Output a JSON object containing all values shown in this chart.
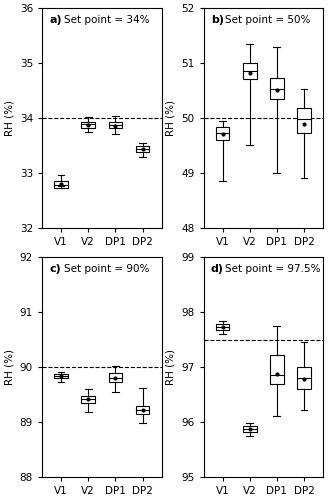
{
  "panels": [
    {
      "label": "a)",
      "title": "Set point = 34%",
      "ylim": [
        32,
        36
      ],
      "yticks": [
        32,
        33,
        34,
        35,
        36
      ],
      "setpoint": 34,
      "ylabel": "RH (%)",
      "boxes": [
        {
          "label": "V1",
          "whislo": 32.75,
          "q1": 32.72,
          "med": 32.78,
          "q3": 32.85,
          "whishi": 32.95,
          "mean": 32.79
        },
        {
          "label": "V2",
          "whislo": 33.75,
          "q1": 33.82,
          "med": 33.88,
          "q3": 33.93,
          "whishi": 34.02,
          "mean": 33.87
        },
        {
          "label": "DP1",
          "whislo": 33.7,
          "q1": 33.82,
          "med": 33.87,
          "q3": 33.92,
          "whishi": 34.03,
          "mean": 33.86
        },
        {
          "label": "DP2",
          "whislo": 33.28,
          "q1": 33.38,
          "med": 33.43,
          "q3": 33.48,
          "whishi": 33.55,
          "mean": 33.43
        }
      ]
    },
    {
      "label": "b)",
      "title": "Set point = 50%",
      "ylim": [
        48,
        52
      ],
      "yticks": [
        48,
        49,
        50,
        51,
        52
      ],
      "setpoint": 50,
      "ylabel": "RH (%)",
      "boxes": [
        {
          "label": "V1",
          "whislo": 48.85,
          "q1": 49.6,
          "med": 49.72,
          "q3": 49.83,
          "whishi": 49.95,
          "mean": 49.7
        },
        {
          "label": "V2",
          "whislo": 49.5,
          "q1": 50.7,
          "med": 50.85,
          "q3": 51.0,
          "whishi": 51.35,
          "mean": 50.82
        },
        {
          "label": "DP1",
          "whislo": 49.0,
          "q1": 50.35,
          "med": 50.53,
          "q3": 50.72,
          "whishi": 51.3,
          "mean": 50.5
        },
        {
          "label": "DP2",
          "whislo": 48.9,
          "q1": 49.72,
          "med": 49.98,
          "q3": 50.18,
          "whishi": 50.52,
          "mean": 49.88
        }
      ]
    },
    {
      "label": "c)",
      "title": "Set point = 90%",
      "ylim": [
        88,
        92
      ],
      "yticks": [
        88,
        89,
        90,
        91,
        92
      ],
      "setpoint": 90,
      "ylabel": "RH (%)",
      "boxes": [
        {
          "label": "V1",
          "whislo": 89.73,
          "q1": 89.8,
          "med": 89.84,
          "q3": 89.88,
          "whishi": 89.92,
          "mean": 89.84
        },
        {
          "label": "V2",
          "whislo": 89.18,
          "q1": 89.35,
          "med": 89.42,
          "q3": 89.48,
          "whishi": 89.6,
          "mean": 89.42
        },
        {
          "label": "DP1",
          "whislo": 89.55,
          "q1": 89.72,
          "med": 89.8,
          "q3": 89.9,
          "whishi": 90.02,
          "mean": 89.8
        },
        {
          "label": "DP2",
          "whislo": 88.98,
          "q1": 89.15,
          "med": 89.22,
          "q3": 89.3,
          "whishi": 89.62,
          "mean": 89.22
        }
      ]
    },
    {
      "label": "d)",
      "title": "Set point = 97.5%",
      "ylim": [
        95,
        99
      ],
      "yticks": [
        95,
        96,
        97,
        98,
        99
      ],
      "setpoint": 97.5,
      "ylabel": "RH (%)",
      "boxes": [
        {
          "label": "V1",
          "whislo": 97.6,
          "q1": 97.68,
          "med": 97.73,
          "q3": 97.78,
          "whishi": 97.85,
          "mean": 97.73
        },
        {
          "label": "V2",
          "whislo": 95.75,
          "q1": 95.82,
          "med": 95.87,
          "q3": 95.93,
          "whishi": 95.98,
          "mean": 95.87
        },
        {
          "label": "DP1",
          "whislo": 96.1,
          "q1": 96.7,
          "med": 96.85,
          "q3": 97.22,
          "whishi": 97.75,
          "mean": 96.88
        },
        {
          "label": "DP2",
          "whislo": 96.22,
          "q1": 96.6,
          "med": 96.8,
          "q3": 97.0,
          "whishi": 97.45,
          "mean": 96.78
        }
      ]
    }
  ],
  "box_color": "#ffffff",
  "box_edgecolor": "#000000",
  "median_color": "#000000",
  "mean_marker": ".",
  "mean_markersize": 4,
  "whisker_color": "#000000",
  "cap_color": "#000000",
  "dashed_color": "#000000",
  "fontsize": 7.5,
  "label_fontsize": 8,
  "title_fontsize": 7.5
}
